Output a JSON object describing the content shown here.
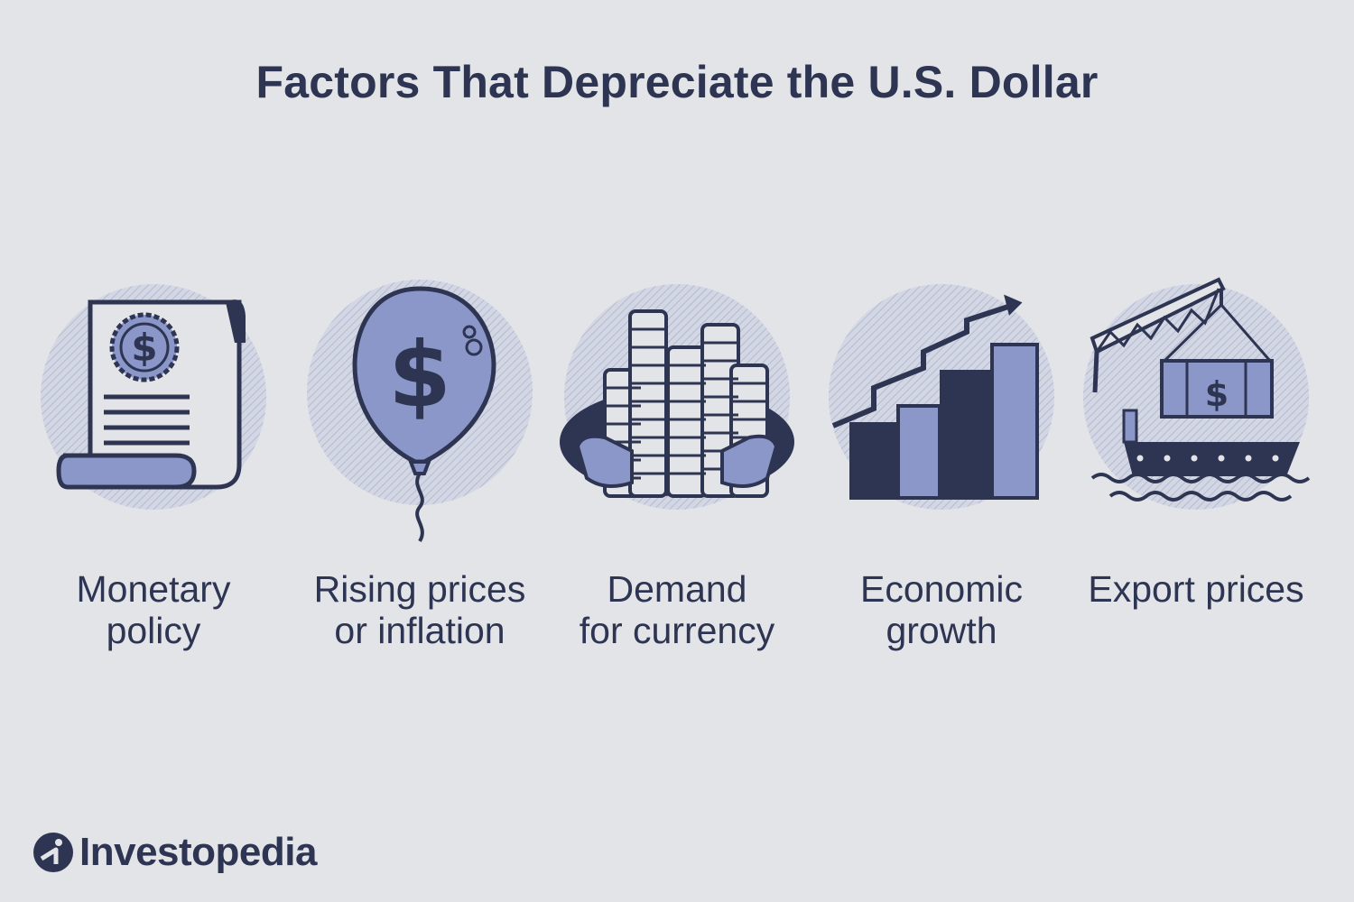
{
  "title": "Factors That Depreciate the U.S. Dollar",
  "factors": [
    {
      "icon": "document-scroll-dollar-icon",
      "line1": "Monetary",
      "line2": "policy"
    },
    {
      "icon": "dollar-balloon-icon",
      "line1": "Rising prices",
      "line2": "or inflation"
    },
    {
      "icon": "coin-stacks-icon",
      "line1": "Demand",
      "line2": "for currency"
    },
    {
      "icon": "growth-bar-chart-icon",
      "line1": "Economic",
      "line2": "growth"
    },
    {
      "icon": "cargo-ship-crane-icon",
      "line1": "Export prices",
      "line2": ""
    }
  ],
  "brand": {
    "name": "Investopedia"
  },
  "colors": {
    "background": "#e3e4e8",
    "navy": "#2e3552",
    "periwinkle": "#8b97c9",
    "halo": "#c3c8dc"
  }
}
